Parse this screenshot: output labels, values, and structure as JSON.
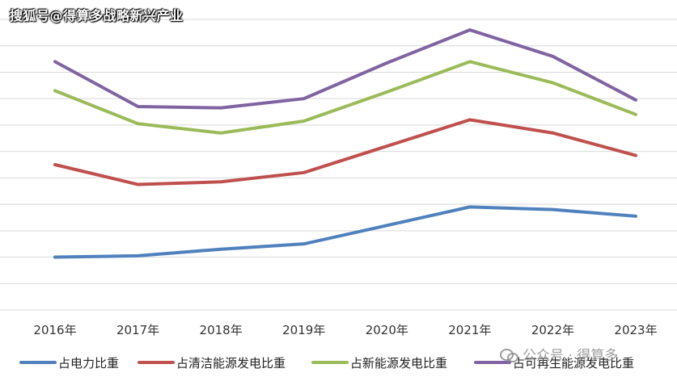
{
  "watermark_top": "搜狐号@得算多战略新兴产业",
  "watermark_bottom": "公众号 · 得算多",
  "chart_data": {
    "type": "line",
    "categories": [
      "2016年",
      "2017年",
      "2018年",
      "2019年",
      "2020年",
      "2021年",
      "2022年",
      "2023年"
    ],
    "series": [
      {
        "name": "占电力比重",
        "color": "#4f81bd",
        "values": [
          1.0,
          1.05,
          1.3,
          1.5,
          2.2,
          2.9,
          2.8,
          2.55
        ]
      },
      {
        "name": "占清洁能源发电比重",
        "color": "#c0504d",
        "values": [
          4.5,
          3.75,
          3.85,
          4.2,
          5.2,
          6.2,
          5.7,
          4.85
        ]
      },
      {
        "name": "占新能源发电比重",
        "color": "#9bbb59",
        "values": [
          7.3,
          6.05,
          5.7,
          6.15,
          7.25,
          8.4,
          7.6,
          6.4
        ]
      },
      {
        "name": "占可再生能源发电比重",
        "color": "#8064a2",
        "values": [
          8.4,
          6.7,
          6.65,
          7.0,
          8.35,
          9.6,
          8.6,
          6.95
        ]
      }
    ],
    "ylim": [
      -1,
      10
    ],
    "grid": true,
    "legend": "bottom"
  }
}
